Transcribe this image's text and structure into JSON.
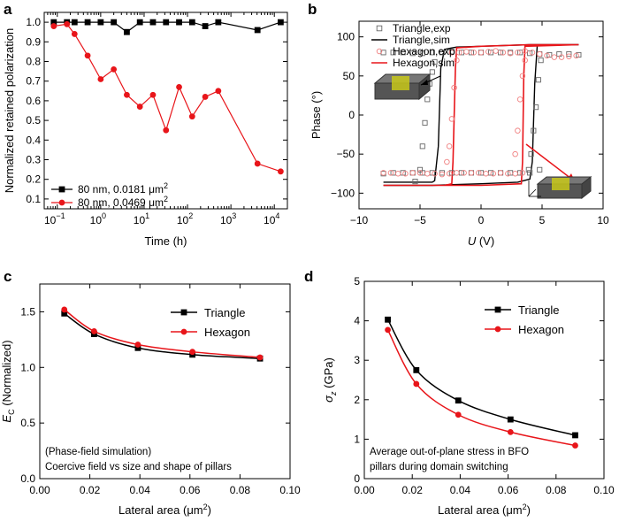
{
  "colors": {
    "black": "#000000",
    "red": "#e8151a",
    "redLight": "#f08080",
    "gray": "#666666",
    "cube": "#c8c81a",
    "cubeShade": "#555555"
  },
  "panels": {
    "a": {
      "label": "a",
      "ylabel": "Normalized retained polarization",
      "xlabel": "Time (h)",
      "xscale": "log",
      "xlim": [
        0.05,
        20000
      ],
      "ylim": [
        0.05,
        1.05
      ],
      "yticks": [
        "0.1",
        "0.2",
        "0.3",
        "0.4",
        "0.5",
        "0.6",
        "0.7",
        "0.8",
        "0.9",
        "1.0"
      ],
      "yticks_values": [
        0.1,
        0.2,
        0.3,
        0.4,
        0.5,
        0.6,
        0.7,
        0.8,
        0.9,
        1.0
      ],
      "xticks": [
        {
          "base": "10",
          "exp": "−1",
          "value": 0.1
        },
        {
          "base": "10",
          "exp": "0",
          "value": 1
        },
        {
          "base": "10",
          "exp": "1",
          "value": 10
        },
        {
          "base": "10",
          "exp": "2",
          "value": 100
        },
        {
          "base": "10",
          "exp": "3",
          "value": 1000
        },
        {
          "base": "10",
          "exp": "4",
          "value": 10000
        }
      ],
      "series": [
        {
          "name": "80 nm, 0.0181",
          "unit": "μm",
          "sup": "2",
          "color": "#000000",
          "marker": "square",
          "x": [
            0.083,
            0.167,
            0.25,
            0.5,
            1,
            2,
            4,
            8,
            16,
            32,
            64,
            128,
            256,
            512,
            4096,
            14000
          ],
          "y": [
            1.0,
            1.0,
            1.0,
            1.0,
            1.0,
            1.0,
            0.95,
            1.0,
            1.0,
            1.0,
            1.0,
            1.0,
            0.98,
            1.0,
            0.96,
            1.0
          ]
        },
        {
          "name": "80 nm, 0.0469",
          "unit": "μm",
          "sup": "2",
          "color": "#e8151a",
          "marker": "circle",
          "x": [
            0.083,
            0.167,
            0.25,
            0.5,
            1,
            2,
            4,
            8,
            16,
            32,
            64,
            128,
            256,
            512,
            4096,
            14000
          ],
          "y": [
            0.98,
            0.99,
            0.94,
            0.83,
            0.71,
            0.76,
            0.63,
            0.57,
            0.63,
            0.45,
            0.67,
            0.52,
            0.62,
            0.65,
            0.28,
            0.24
          ]
        }
      ]
    },
    "b": {
      "label": "b",
      "ylabel": "Phase (°)",
      "xlabel_italic": "U",
      "xlabel_rest": " (V)",
      "xlim": [
        -10,
        10
      ],
      "ylim": [
        -120,
        120
      ],
      "xticks": [
        "−10",
        "−5",
        "0",
        "5",
        "10"
      ],
      "xticks_values": [
        -10,
        -5,
        0,
        5,
        10
      ],
      "yticks": [
        "−100",
        "−50",
        "0",
        "50",
        "100"
      ],
      "yticks_values": [
        -100,
        -50,
        0,
        50,
        100
      ],
      "legend": [
        "Triangle,exp",
        "Triangle,sim",
        "Hexagon,exp",
        "Hexagon,sim"
      ],
      "triangle_exp": {
        "upper_x": [
          -8,
          -7.2,
          -6.4,
          -5.6,
          -4.8,
          -4.0,
          -3.2,
          -2.4,
          -1.6,
          -0.8,
          0,
          0.8,
          1.6,
          2.4,
          3.2,
          4.0,
          4.8,
          5.6,
          6.4,
          7.2,
          8
        ],
        "upper_y": [
          80,
          80,
          80,
          79,
          79,
          80,
          80,
          81,
          80,
          80,
          80,
          80,
          80,
          80,
          80,
          79,
          78,
          77,
          78,
          78,
          77
        ],
        "switch_down_x": [
          -5.4,
          -5.0,
          -4.8,
          -4.6,
          -4.4,
          -4.2,
          -4.0,
          -3.8
        ],
        "switch_down_y": [
          -85,
          -70,
          -40,
          -10,
          20,
          40,
          55,
          68
        ],
        "lower_x": [
          -8,
          -7.2,
          -6.4,
          -5.6,
          -4.8,
          -4.0,
          -3.2,
          -2.4,
          -1.6,
          -0.8,
          0,
          0.8,
          1.6,
          2.4,
          3.2,
          4.0,
          4.8
        ],
        "lower_y": [
          -75,
          -74,
          -74,
          -74,
          -74,
          -74,
          -74,
          -74,
          -74,
          -74,
          -74,
          -74,
          -74,
          -74,
          -74,
          -74,
          -70
        ],
        "switch_up_x": [
          3.9,
          4.1,
          4.3,
          4.5,
          4.7,
          4.9
        ],
        "switch_up_y": [
          -70,
          -50,
          -20,
          10,
          45,
          70
        ]
      },
      "hexagon_exp": {
        "upper_x": [
          -2.4,
          -1.8,
          -1.2,
          -0.6,
          0,
          0.6,
          1.2,
          1.8,
          2.4,
          3.0,
          3.6,
          4.2,
          4.8,
          5.4,
          6.0,
          6.6,
          7.2,
          7.8
        ],
        "upper_y": [
          80,
          80,
          81,
          80,
          80,
          81,
          82,
          80,
          79,
          80,
          82,
          80,
          78,
          76,
          74,
          74,
          75,
          76
        ],
        "lower_x": [
          -8,
          -7.4,
          -6.8,
          -6.2,
          -5.6,
          -5.0,
          -4.4,
          -3.8,
          -3.2,
          -2.6,
          -2.0,
          -1.4,
          -0.8,
          -0.2,
          0.4,
          1.0,
          1.6,
          2.2,
          2.8,
          3.4
        ],
        "lower_y": [
          -74,
          -74,
          -75,
          -75,
          -74,
          -74,
          -75,
          -75,
          -76,
          -75,
          -74,
          -74,
          -74,
          -74,
          -75,
          -75,
          -74,
          -75,
          -75,
          -74
        ],
        "switch_down_x": [
          -2.8,
          -2.6,
          -2.4,
          -2.2,
          -2.0
        ],
        "switch_down_y": [
          -60,
          -40,
          -5,
          35,
          70
        ],
        "switch_up_x": [
          2.8,
          3.0,
          3.2,
          3.4,
          3.6
        ],
        "switch_up_y": [
          -50,
          -20,
          20,
          50,
          70
        ]
      },
      "triangle_sim": {
        "x": [
          -8,
          -5,
          -4,
          -3.8,
          -3.5,
          -3.3,
          -3.0,
          -2.0,
          0,
          4,
          6,
          8,
          8,
          4.8,
          4.6,
          4.4,
          4.2,
          4.0,
          3.0,
          0,
          -4,
          -6,
          -8
        ],
        "y": [
          -86,
          -86,
          -86,
          -84,
          -40,
          60,
          84,
          87,
          88,
          90,
          90,
          90,
          90,
          90,
          88,
          40,
          -60,
          -82,
          -86,
          -88,
          -90,
          -90,
          -90
        ]
      },
      "hexagon_sim": {
        "x": [
          -8,
          -3,
          -2.4,
          -2.3,
          -2.1,
          -2.0,
          0,
          4,
          8,
          8,
          3.6,
          3.5,
          3.4,
          3.3,
          0,
          -8
        ],
        "y": [
          -90,
          -90,
          -88,
          -60,
          60,
          86,
          88,
          90,
          90,
          90,
          88,
          50,
          -60,
          -88,
          -90,
          -90
        ]
      }
    },
    "c": {
      "label": "c",
      "ylabel_main": "E",
      "ylabel_sub": "C",
      "ylabel_rest": " (Normalized)",
      "xlabel": "Lateral area (μm",
      "xlabel_sup": "2",
      "xlabel_end": ")",
      "xlim": [
        0,
        0.1
      ],
      "ylim": [
        0,
        1.75
      ],
      "xticks": [
        "0.00",
        "0.02",
        "0.04",
        "0.06",
        "0.08",
        "0.10"
      ],
      "xticks_values": [
        0,
        0.02,
        0.04,
        0.06,
        0.08,
        0.1
      ],
      "yticks": [
        "0.0",
        "0.5",
        "1.0",
        "1.5"
      ],
      "yticks_values": [
        0,
        0.5,
        1.0,
        1.5
      ],
      "series": [
        {
          "name": "Triangle",
          "color": "#000000",
          "marker": "square",
          "x": [
            0.0098,
            0.0217,
            0.0392,
            0.061,
            0.088
          ],
          "y": [
            1.485,
            1.3,
            1.175,
            1.115,
            1.08
          ]
        },
        {
          "name": "Hexagon",
          "color": "#e8151a",
          "marker": "circle",
          "x": [
            0.0098,
            0.0217,
            0.0392,
            0.061,
            0.088
          ],
          "y": [
            1.52,
            1.325,
            1.205,
            1.14,
            1.09
          ]
        }
      ],
      "annotation": [
        "(Phase-field simulation)",
        "Coercive field vs size and shape of pillars"
      ]
    },
    "d": {
      "label": "d",
      "ylabel_main": "σ",
      "ylabel_sub": "z",
      "ylabel_rest": " (GPa)",
      "xlabel": "Lateral area (μm",
      "xlabel_sup": "2",
      "xlabel_end": ")",
      "xlim": [
        0,
        0.1
      ],
      "ylim": [
        0,
        5
      ],
      "xticks": [
        "0.00",
        "0.02",
        "0.04",
        "0.06",
        "0.08",
        "0.10"
      ],
      "xticks_values": [
        0,
        0.02,
        0.04,
        0.06,
        0.08,
        0.1
      ],
      "yticks": [
        "0",
        "1",
        "2",
        "3",
        "4",
        "5"
      ],
      "yticks_values": [
        0,
        1,
        2,
        3,
        4,
        5
      ],
      "series": [
        {
          "name": "Triangle",
          "color": "#000000",
          "marker": "square",
          "x": [
            0.0098,
            0.0217,
            0.0392,
            0.061,
            0.088
          ],
          "y": [
            4.03,
            2.75,
            1.98,
            1.5,
            1.1
          ]
        },
        {
          "name": "Hexagon",
          "color": "#e8151a",
          "marker": "circle",
          "x": [
            0.0098,
            0.0217,
            0.0392,
            0.061,
            0.088
          ],
          "y": [
            3.77,
            2.4,
            1.62,
            1.18,
            0.84
          ]
        }
      ],
      "annotation": [
        "Average out-of-plane stress in BFO",
        "pillars during domain switching"
      ]
    }
  },
  "chart_data": [
    {
      "type": "line",
      "title": "a",
      "xlabel": "Time (h)",
      "ylabel": "Normalized retained polarization",
      "xscale": "log",
      "series": [
        {
          "name": "80 nm, 0.0181 μm2",
          "x": [
            0.083,
            0.167,
            0.25,
            0.5,
            1,
            2,
            4,
            8,
            16,
            32,
            64,
            128,
            256,
            512,
            4096,
            14000
          ],
          "y": [
            1.0,
            1.0,
            1.0,
            1.0,
            1.0,
            1.0,
            0.95,
            1.0,
            1.0,
            1.0,
            1.0,
            1.0,
            0.98,
            1.0,
            0.96,
            1.0
          ]
        },
        {
          "name": "80 nm, 0.0469 μm2",
          "x": [
            0.083,
            0.167,
            0.25,
            0.5,
            1,
            2,
            4,
            8,
            16,
            32,
            64,
            128,
            256,
            512,
            4096,
            14000
          ],
          "y": [
            0.98,
            0.99,
            0.94,
            0.83,
            0.71,
            0.76,
            0.63,
            0.57,
            0.63,
            0.45,
            0.67,
            0.52,
            0.62,
            0.65,
            0.28,
            0.24
          ]
        }
      ],
      "ylim": [
        0.05,
        1.05
      ]
    },
    {
      "type": "scatter",
      "title": "b",
      "xlabel": "U (V)",
      "ylabel": "Phase (°)",
      "xlim": [
        -10,
        10
      ],
      "ylim": [
        -120,
        120
      ],
      "series": [
        {
          "name": "Triangle,exp"
        },
        {
          "name": "Triangle,sim"
        },
        {
          "name": "Hexagon,exp"
        },
        {
          "name": "Hexagon,sim"
        }
      ]
    },
    {
      "type": "line",
      "title": "c",
      "xlabel": "Lateral area (μm2)",
      "ylabel": "EC (Normalized)",
      "xlim": [
        0,
        0.1
      ],
      "ylim": [
        0,
        1.75
      ],
      "series": [
        {
          "name": "Triangle",
          "x": [
            0.0098,
            0.0217,
            0.0392,
            0.061,
            0.088
          ],
          "y": [
            1.485,
            1.3,
            1.175,
            1.115,
            1.08
          ]
        },
        {
          "name": "Hexagon",
          "x": [
            0.0098,
            0.0217,
            0.0392,
            0.061,
            0.088
          ],
          "y": [
            1.52,
            1.325,
            1.205,
            1.14,
            1.09
          ]
        }
      ]
    },
    {
      "type": "line",
      "title": "d",
      "xlabel": "Lateral area (μm2)",
      "ylabel": "σz (GPa)",
      "xlim": [
        0,
        0.1
      ],
      "ylim": [
        0,
        5
      ],
      "series": [
        {
          "name": "Triangle",
          "x": [
            0.0098,
            0.0217,
            0.0392,
            0.061,
            0.088
          ],
          "y": [
            4.03,
            2.75,
            1.98,
            1.5,
            1.1
          ]
        },
        {
          "name": "Hexagon",
          "x": [
            0.0098,
            0.0217,
            0.0392,
            0.061,
            0.088
          ],
          "y": [
            3.77,
            2.4,
            1.62,
            1.18,
            0.84
          ]
        }
      ]
    }
  ]
}
